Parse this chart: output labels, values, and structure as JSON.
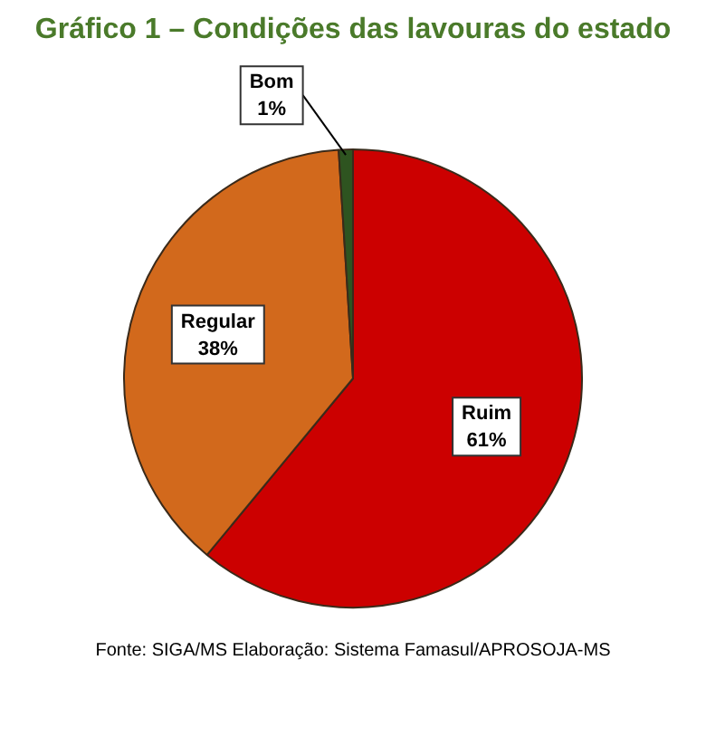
{
  "chart_data": {
    "type": "pie",
    "title": "Gráfico 1 – Condições das lavouras do estado",
    "categories": [
      "Ruim",
      "Regular",
      "Bom"
    ],
    "values": [
      61,
      38,
      1
    ],
    "value_labels": [
      "61%",
      "38%",
      "1%"
    ],
    "colors": [
      "#cc0000",
      "#d2691c",
      "#2e5420"
    ],
    "legend": false,
    "annotations": [
      "Fonte: SIGA/MS Elaboração: Sistema Famasul/APROSOJA-MS"
    ]
  }
}
